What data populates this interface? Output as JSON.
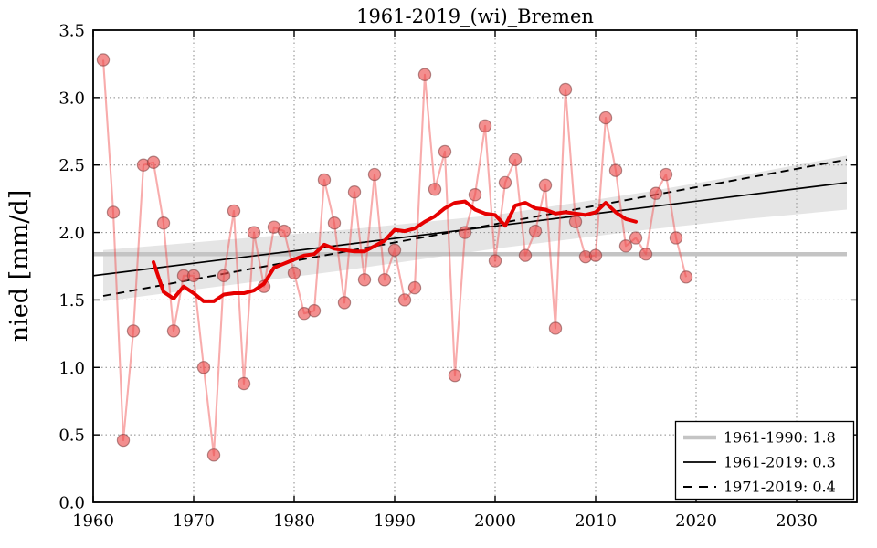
{
  "figure": {
    "title": "1961-2019_(wi)_Bremen",
    "ylabel": "nied [mm/d]",
    "background": "#ffffff"
  },
  "axes": {
    "xlim": [
      1960,
      2036
    ],
    "ylim": [
      0.0,
      3.5
    ],
    "x_ticks": [
      1960,
      1970,
      1980,
      1990,
      2000,
      2010,
      2020,
      2030
    ],
    "y_tick_labels": [
      "0.0",
      "0.5",
      "1.0",
      "1.5",
      "2.0",
      "2.5",
      "3.0",
      "3.5"
    ],
    "grid": "dotted both axes"
  },
  "legend": {
    "position": "lower right",
    "items": [
      {
        "label": "1961-1990: 1.8",
        "style": "thick-solid",
        "color": "#c4c4c4"
      },
      {
        "label": "1961-2019: 0.3",
        "style": "thin-solid",
        "color": "#000000"
      },
      {
        "label": "1971-2019: 0.4",
        "style": "dashed",
        "color": "#000000"
      }
    ]
  },
  "colors": {
    "annual_marker_fill": "rgba(235,75,75,0.62)",
    "annual_marker_edge": "rgba(120,60,60,0.55)",
    "annual_line": "rgba(240,70,70,0.45)",
    "running_mean": "#e60000",
    "mean_line": "#c4c4c4",
    "trend_solid": "#000000",
    "trend_dashed": "#000000",
    "band_fill": "rgba(160,160,160,0.28)",
    "grid": "#8a8a8a",
    "spine": "#000000"
  },
  "chart_data": {
    "type": "line",
    "title": "1961-2019_(wi)_Bremen",
    "xlabel": "",
    "ylabel": "nied [mm/d]",
    "xlim": [
      1960,
      2036
    ],
    "ylim": [
      0.0,
      3.5
    ],
    "grid": true,
    "legend_position": "lower right",
    "series": [
      {
        "name": "annual_winter_precipitation",
        "marker": "circle",
        "x": [
          1961,
          1962,
          1963,
          1964,
          1965,
          1966,
          1967,
          1968,
          1969,
          1970,
          1971,
          1972,
          1973,
          1974,
          1975,
          1976,
          1977,
          1978,
          1979,
          1980,
          1981,
          1982,
          1983,
          1984,
          1985,
          1986,
          1987,
          1988,
          1989,
          1990,
          1991,
          1992,
          1993,
          1994,
          1995,
          1996,
          1997,
          1998,
          1999,
          2000,
          2001,
          2002,
          2003,
          2004,
          2005,
          2006,
          2007,
          2008,
          2009,
          2010,
          2011,
          2012,
          2013,
          2014,
          2015,
          2016,
          2017,
          2018,
          2019
        ],
        "values": [
          3.28,
          2.15,
          0.46,
          1.27,
          2.5,
          2.52,
          2.07,
          1.27,
          1.68,
          1.68,
          1.0,
          0.35,
          1.68,
          2.16,
          0.88,
          2.0,
          1.6,
          2.04,
          2.01,
          1.7,
          1.4,
          1.42,
          2.39,
          2.07,
          1.48,
          2.3,
          1.65,
          2.43,
          1.65,
          1.87,
          1.5,
          1.59,
          3.17,
          2.32,
          2.6,
          0.94,
          2.0,
          2.28,
          2.79,
          1.79,
          2.37,
          2.54,
          1.83,
          2.01,
          2.35,
          1.29,
          3.06,
          2.08,
          1.82,
          1.83,
          2.85,
          2.46,
          1.9,
          1.96,
          1.84,
          2.29,
          2.43,
          1.96,
          1.67
        ]
      },
      {
        "name": "running_mean_11yr",
        "x": [
          1966,
          1967,
          1968,
          1969,
          1970,
          1971,
          1972,
          1973,
          1974,
          1975,
          1976,
          1977,
          1978,
          1979,
          1980,
          1981,
          1982,
          1983,
          1984,
          1985,
          1986,
          1987,
          1988,
          1989,
          1990,
          1991,
          1992,
          1993,
          1994,
          1995,
          1996,
          1997,
          1998,
          1999,
          2000,
          2001,
          2002,
          2003,
          2004,
          2005,
          2006,
          2007,
          2008,
          2009,
          2010,
          2011,
          2012,
          2013,
          2014
        ],
        "values": [
          1.78,
          1.56,
          1.51,
          1.6,
          1.55,
          1.49,
          1.49,
          1.54,
          1.55,
          1.55,
          1.57,
          1.62,
          1.74,
          1.77,
          1.8,
          1.83,
          1.84,
          1.91,
          1.88,
          1.87,
          1.86,
          1.86,
          1.9,
          1.94,
          2.02,
          2.01,
          2.03,
          2.08,
          2.12,
          2.18,
          2.22,
          2.23,
          2.17,
          2.14,
          2.13,
          2.05,
          2.2,
          2.22,
          2.18,
          2.17,
          2.14,
          2.15,
          2.14,
          2.13,
          2.15,
          2.22,
          2.15,
          2.1,
          2.08
        ]
      },
      {
        "name": "mean_1961_1990",
        "label": "1961-1990: 1.8",
        "x": [
          1960,
          2035
        ],
        "values": [
          1.84,
          1.84
        ]
      },
      {
        "name": "trend_1961_2019",
        "label": "1961-2019: 0.3",
        "x": [
          1960,
          2035
        ],
        "values": [
          1.68,
          2.37
        ]
      },
      {
        "name": "trend_1971_2019",
        "label": "1971-2019: 0.4",
        "x": [
          1961,
          2035
        ],
        "values": [
          1.53,
          2.54
        ]
      },
      {
        "name": "confidence_band",
        "x": [
          1961,
          1985,
          2000,
          2015,
          2025,
          2035
        ],
        "top": [
          1.87,
          2.02,
          2.13,
          2.3,
          2.43,
          2.57
        ],
        "bottom": [
          1.49,
          1.72,
          1.88,
          2.02,
          2.1,
          2.17
        ]
      }
    ]
  }
}
